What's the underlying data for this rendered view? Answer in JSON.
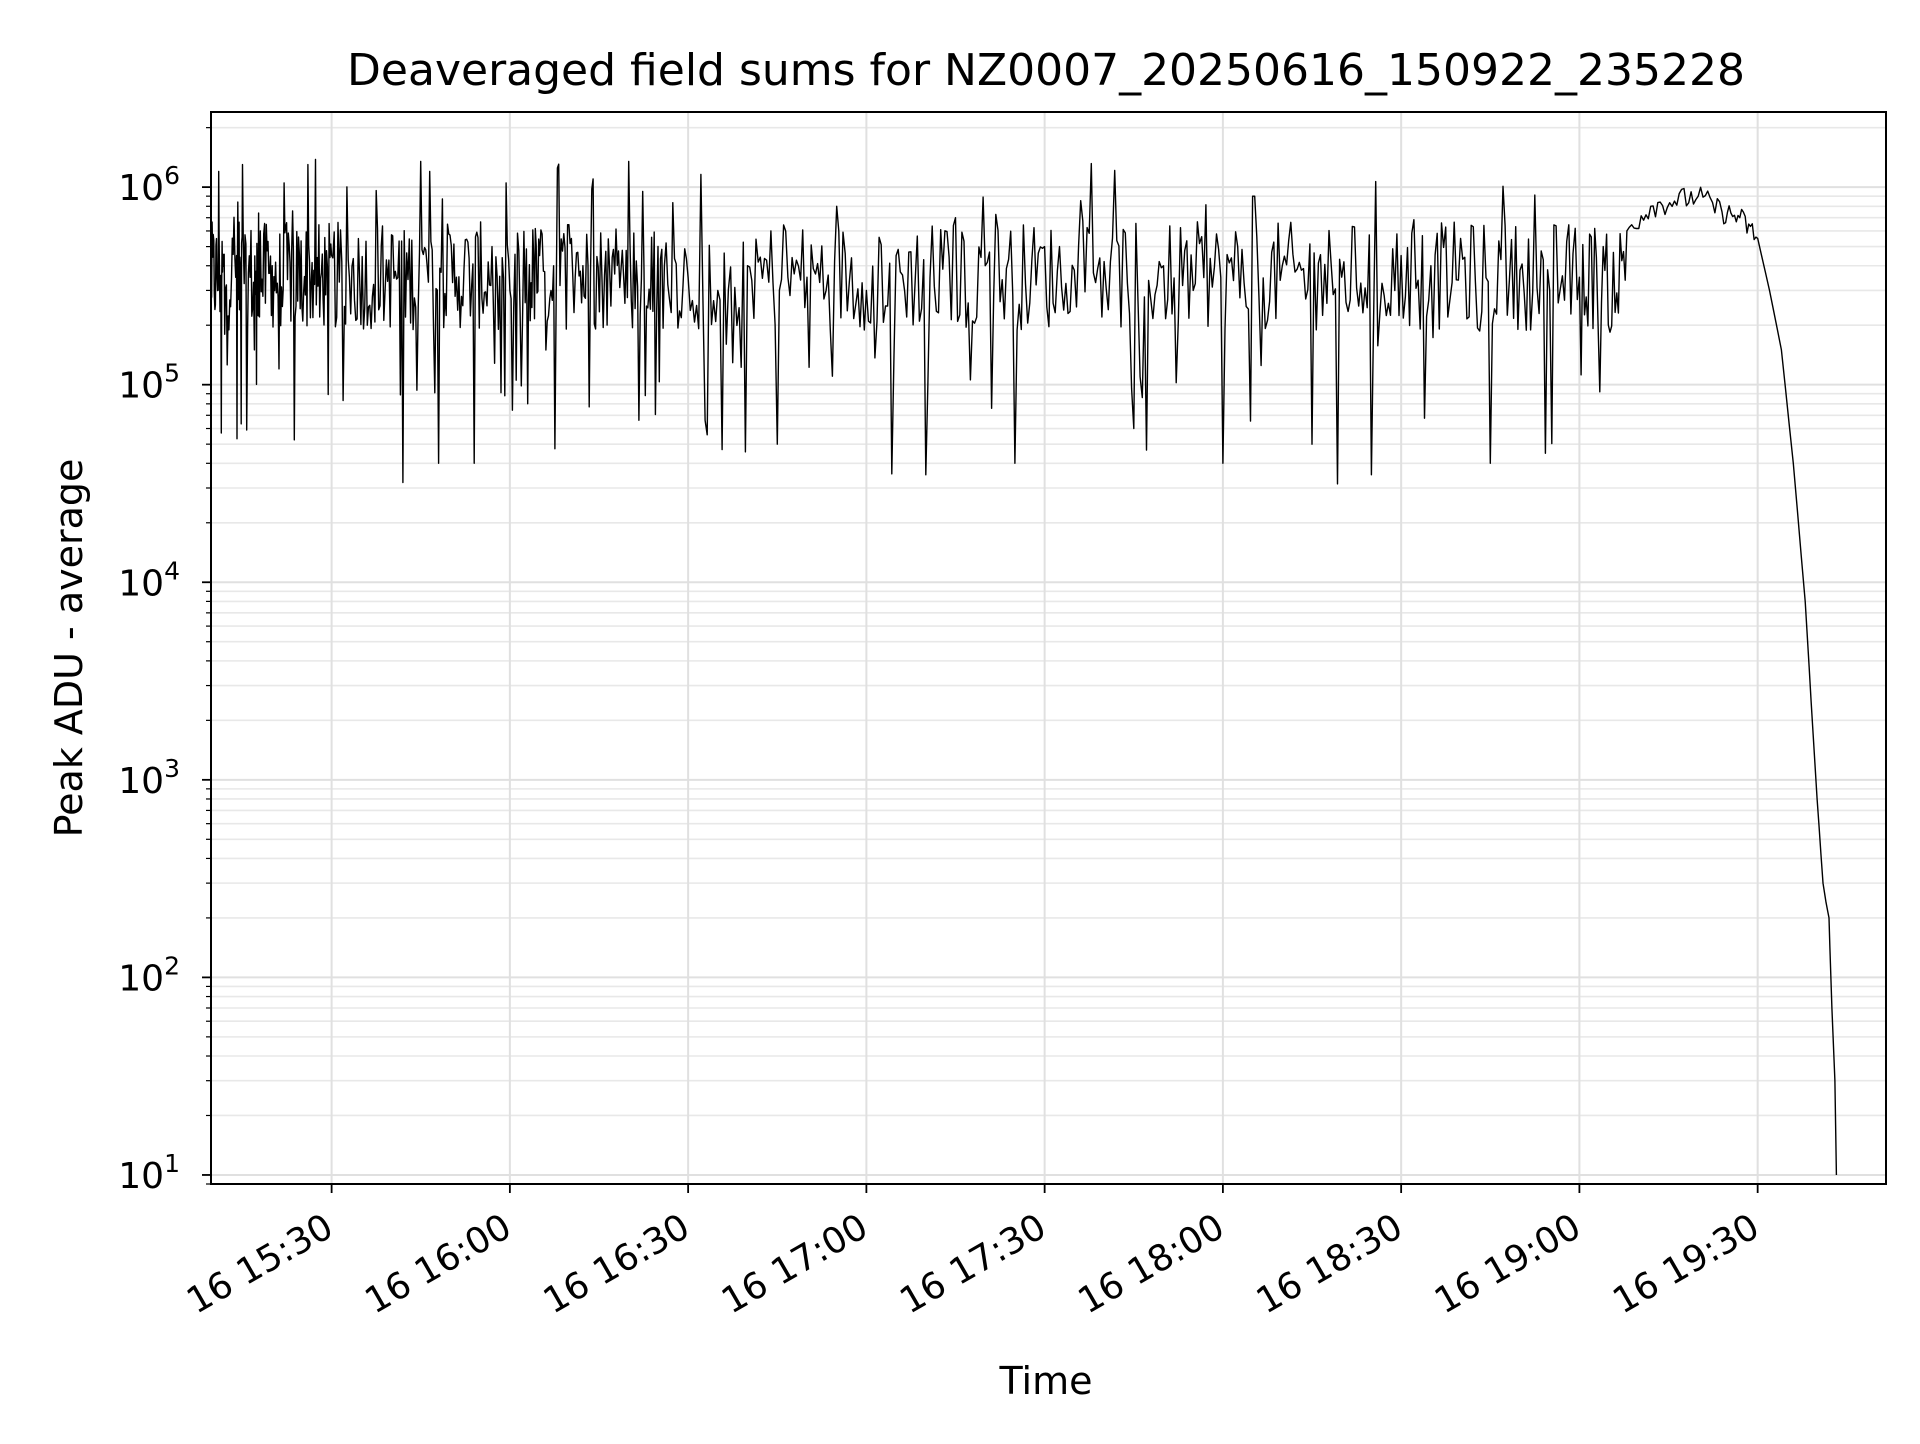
{
  "chart_data": {
    "type": "line",
    "title": "Deaveraged field sums for NZ0007_20250616_150922_235228",
    "xlabel": "Time",
    "ylabel": "Peak ADU - average",
    "xlim": [
      "2025-06-16 15:09:42",
      "2025-06-16 19:51:36"
    ],
    "ylim": [
      9,
      2400000
    ],
    "yscale": "log",
    "grid": "on (major and minor)",
    "line_color": "#000000",
    "x_tick_labels": [
      "16 15:30",
      "16 16:00",
      "16 16:30",
      "16 17:00",
      "16 17:30",
      "16 18:00",
      "16 18:30",
      "16 19:00",
      "16 19:30"
    ],
    "x_tick_values": [
      "2025-06-16 15:30",
      "2025-06-16 16:00",
      "2025-06-16 16:30",
      "2025-06-16 17:00",
      "2025-06-16 17:30",
      "2025-06-16 18:00",
      "2025-06-16 18:30",
      "2025-06-16 19:00",
      "2025-06-16 19:30"
    ],
    "y_tick_labels": [
      {
        "base": "10",
        "exp": "1",
        "value": 10
      },
      {
        "base": "10",
        "exp": "2",
        "value": 100
      },
      {
        "base": "10",
        "exp": "3",
        "value": 1000
      },
      {
        "base": "10",
        "exp": "4",
        "value": 10000
      },
      {
        "base": "10",
        "exp": "5",
        "value": 100000
      },
      {
        "base": "10",
        "exp": "6",
        "value": 1000000
      }
    ],
    "series": [
      {
        "x": [
          "2025-06-16 15:09:42",
          "2025-06-16 15:11",
          "2025-06-16 15:12",
          "2025-06-16 15:14",
          "2025-06-16 15:15",
          "2025-06-16 15:17",
          "2025-06-16 15:18",
          "2025-06-16 15:20",
          "2025-06-16 15:22",
          "2025-06-16 15:24",
          "2025-06-16 15:26",
          "2025-06-16 15:28",
          "2025-06-16 15:30",
          "2025-06-16 15:33",
          "2025-06-16 15:36",
          "2025-06-16 15:39",
          "2025-06-16 15:42",
          "2025-06-16 15:45",
          "2025-06-16 15:48",
          "2025-06-16 15:51",
          "2025-06-16 15:54",
          "2025-06-16 15:57",
          "2025-06-16 16:00",
          "2025-06-16 16:03",
          "2025-06-16 16:05",
          "2025-06-16 16:08",
          "2025-06-16 16:11",
          "2025-06-16 16:14",
          "2025-06-16 16:17",
          "2025-06-16 16:20",
          "2025-06-16 16:23",
          "2025-06-16 16:26",
          "2025-06-16 16:30",
          "2025-06-16 16:35",
          "2025-06-16 16:40",
          "2025-06-16 16:45",
          "2025-06-16 16:50",
          "2025-06-16 16:55",
          "2025-06-16 17:00",
          "2025-06-16 17:05",
          "2025-06-16 17:10",
          "2025-06-16 17:15",
          "2025-06-16 17:20",
          "2025-06-16 17:25",
          "2025-06-16 17:30",
          "2025-06-16 17:35",
          "2025-06-16 17:40",
          "2025-06-16 17:45",
          "2025-06-16 17:50",
          "2025-06-16 17:55",
          "2025-06-16 18:00",
          "2025-06-16 18:05",
          "2025-06-16 18:10",
          "2025-06-16 18:15",
          "2025-06-16 18:20",
          "2025-06-16 18:25",
          "2025-06-16 18:30",
          "2025-06-16 18:35",
          "2025-06-16 18:40",
          "2025-06-16 18:45",
          "2025-06-16 18:50",
          "2025-06-16 18:55",
          "2025-06-16 19:00",
          "2025-06-16 19:04",
          "2025-06-16 19:08",
          "2025-06-16 19:12",
          "2025-06-16 19:16",
          "2025-06-16 19:20",
          "2025-06-16 19:24",
          "2025-06-16 19:27",
          "2025-06-16 19:30",
          "2025-06-16 19:32",
          "2025-06-16 19:34",
          "2025-06-16 19:36",
          "2025-06-16 19:38",
          "2025-06-16 19:39",
          "2025-06-16 19:40",
          "2025-06-16 19:41",
          "2025-06-16 19:41:30",
          "2025-06-16 19:42",
          "2025-06-16 19:42:30",
          "2025-06-16 19:43",
          "2025-06-16 19:43:15"
        ],
        "values": [
          300000,
          1200000,
          180000,
          450000,
          1300000,
          150000,
          600000,
          400000,
          1050000,
          250000,
          1300000,
          220000,
          450000,
          350000,
          200000,
          300000,
          32000,
          1350000,
          40000,
          350000,
          40000,
          500000,
          300000,
          80000,
          450000,
          1250000,
          350000,
          1100000,
          250000,
          1350000,
          250000,
          400000,
          350000,
          300000,
          400000,
          50000,
          350000,
          800000,
          300000,
          450000,
          35000,
          700000,
          400000,
          40000,
          500000,
          380000,
          420000,
          60000,
          400000,
          300000,
          40000,
          900000,
          400000,
          50000,
          350000,
          35000,
          450000,
          400000,
          550000,
          40000,
          380000,
          300000,
          350000,
          500000,
          600000,
          800000,
          850000,
          900000,
          750000,
          700000,
          550000,
          300000,
          150000,
          40000,
          8000,
          2500,
          800,
          300,
          240,
          200,
          70,
          30,
          10
        ]
      }
    ]
  }
}
